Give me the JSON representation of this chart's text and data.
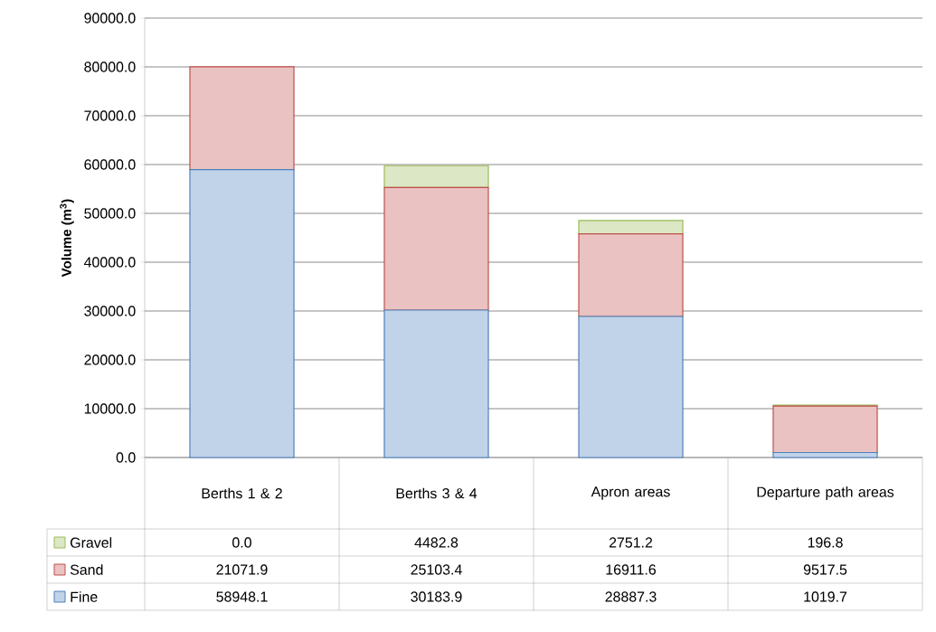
{
  "chart_data": {
    "type": "bar",
    "stacked": true,
    "ylabel": "Volume (m$^{3}$)",
    "categories": [
      "Berths 1 & 2",
      "Berths 3 & 4",
      "Apron areas",
      "Departure path areas"
    ],
    "series": [
      {
        "name": "Fine",
        "color": "#4f81bd",
        "values": [
          58948.1,
          30183.9,
          28887.3,
          1019.7
        ],
        "value_labels": [
          "58948.1",
          "30183.9",
          "28887.3",
          "1019.7"
        ]
      },
      {
        "name": "Sand",
        "color": "#c0504d",
        "values": [
          21071.9,
          25103.4,
          16911.6,
          9517.5
        ],
        "value_labels": [
          "21071.9",
          "25103.4",
          "16911.6",
          "9517.5"
        ]
      },
      {
        "name": "Gravel",
        "color": "#9bbb59",
        "values": [
          0.0,
          4482.8,
          2751.2,
          196.8
        ],
        "value_labels": [
          "0.0",
          "4482.8",
          "2751.2",
          "196.8"
        ]
      }
    ],
    "ylim": [
      0,
      90000
    ],
    "yticks": [
      {
        "value": 0,
        "label": "0.0"
      },
      {
        "value": 10000,
        "label": "10000.0"
      },
      {
        "value": 20000,
        "label": "20000.0"
      },
      {
        "value": 30000,
        "label": "30000.0"
      },
      {
        "value": 40000,
        "label": "40000.0"
      },
      {
        "value": 50000,
        "label": "50000.0"
      },
      {
        "value": 60000,
        "label": "60000.0"
      },
      {
        "value": 70000,
        "label": "70000.0"
      },
      {
        "value": 80000,
        "label": "80000.0"
      },
      {
        "value": 90000,
        "label": "90000.0"
      }
    ],
    "grid": "y",
    "legend": "bottom left"
  }
}
